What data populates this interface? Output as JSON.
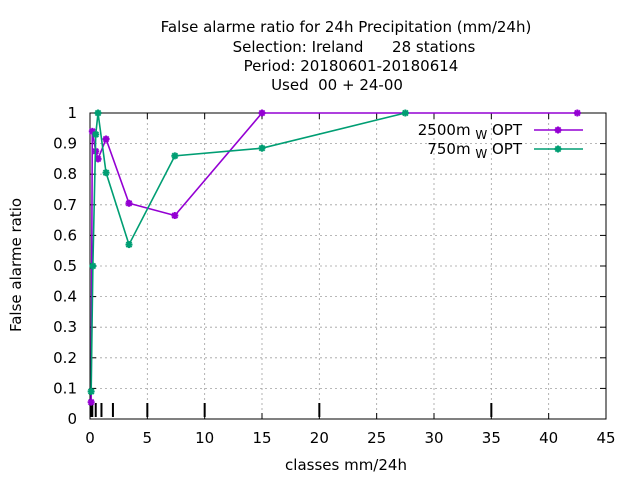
{
  "chart_data": {
    "type": "line",
    "title_lines": [
      "False alarme ratio  for 24h Precipitation (mm/24h)",
      "Selection: Ireland      28 stations",
      "Period: 20180601-20180614",
      "Used  00 + 24-00"
    ],
    "xlabel": "classes mm/24h",
    "ylabel": "False alarme ratio",
    "xlim": [
      0,
      45
    ],
    "ylim": [
      0,
      1
    ],
    "xticks": [
      0,
      5,
      10,
      15,
      20,
      25,
      30,
      35,
      40,
      45
    ],
    "yticks": [
      0,
      0.1,
      0.2,
      0.3,
      0.4,
      0.5,
      0.6,
      0.7,
      0.8,
      0.9,
      1
    ],
    "grid": true,
    "legend_position": "top-right",
    "class_markers": [
      0.1,
      0.2,
      0.5,
      1,
      2,
      5,
      10,
      20,
      35
    ],
    "series": [
      {
        "name_main": "2500m",
        "name_sub": "W",
        "name_suffix": "OPT",
        "color": "#9400d3",
        "x": [
          0.1,
          0.2,
          0.5,
          0.7,
          1.4,
          3.4,
          7.4,
          15,
          42.5
        ],
        "y": [
          0.055,
          0.94,
          0.875,
          0.85,
          0.915,
          0.705,
          0.665,
          1.0,
          1.0
        ]
      },
      {
        "name_main": "750m",
        "name_sub": "W",
        "name_suffix": "OPT",
        "color": "#009e73",
        "x": [
          0.1,
          0.25,
          0.5,
          0.7,
          1.4,
          3.4,
          7.4,
          15,
          27.5
        ],
        "y": [
          0.09,
          0.5,
          0.93,
          1.0,
          0.805,
          0.57,
          0.86,
          0.885,
          1.0
        ]
      }
    ]
  }
}
